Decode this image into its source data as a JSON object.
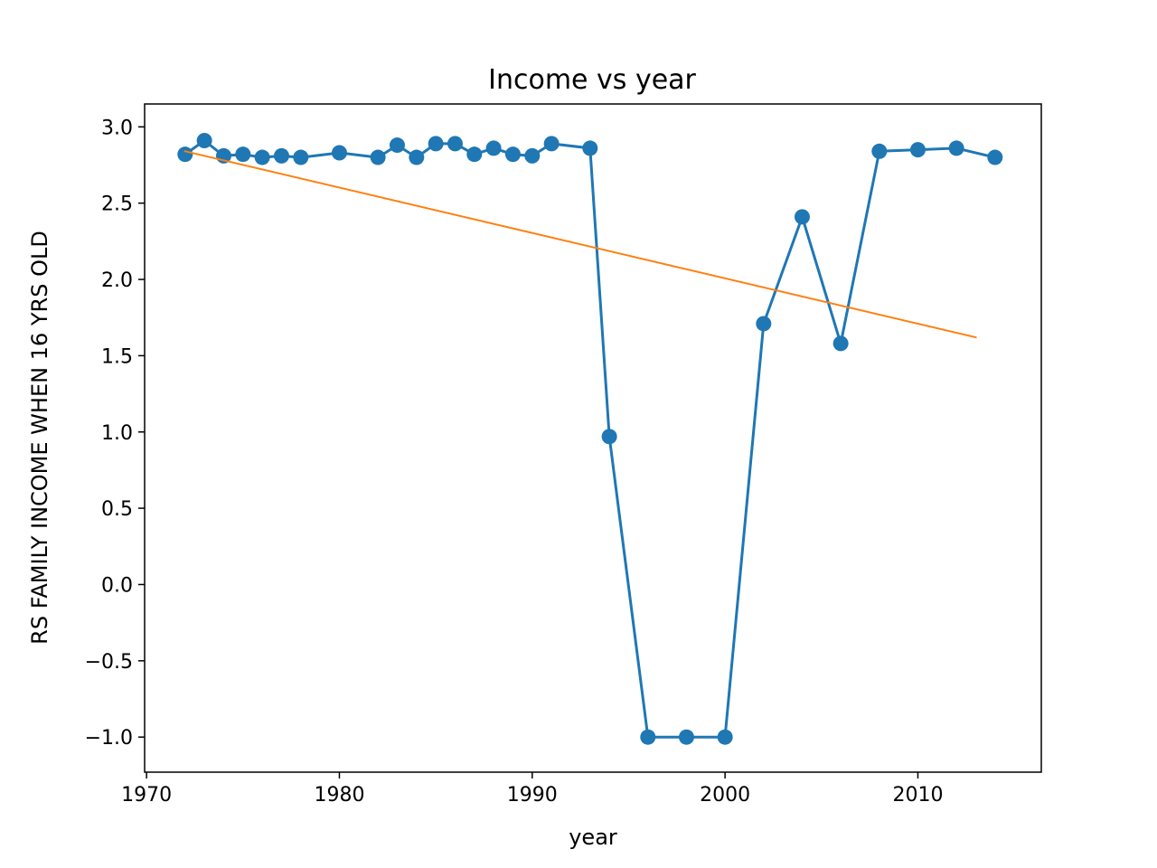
{
  "chart_data": {
    "type": "line",
    "title": "Income vs year",
    "xlabel": "year",
    "ylabel": "RS FAMILY INCOME WHEN 16 YRS OLD",
    "xlim": [
      1969.9,
      2016.4
    ],
    "ylim": [
      -1.23,
      3.15
    ],
    "xticks": [
      1970,
      1980,
      1990,
      2000,
      2010
    ],
    "xtick_labels": [
      "1970",
      "1980",
      "1990",
      "2000",
      "2010"
    ],
    "yticks": [
      -1.0,
      -0.5,
      0.0,
      0.5,
      1.0,
      1.5,
      2.0,
      2.5,
      3.0
    ],
    "ytick_labels": [
      "−1.0",
      "−0.5",
      "0.0",
      "0.5",
      "1.0",
      "1.5",
      "2.0",
      "2.5",
      "3.0"
    ],
    "grid": false,
    "series": [
      {
        "style": "line-marker",
        "color": "#1f77b4",
        "x": [
          1972,
          1973,
          1974,
          1975,
          1976,
          1977,
          1978,
          1980,
          1982,
          1983,
          1984,
          1985,
          1986,
          1987,
          1988,
          1989,
          1990,
          1991,
          1993,
          1994,
          1996,
          1998,
          2000,
          2002,
          2004,
          2006,
          2008,
          2010,
          2012,
          2014
        ],
        "y": [
          2.82,
          2.91,
          2.81,
          2.82,
          2.8,
          2.81,
          2.8,
          2.83,
          2.8,
          2.88,
          2.8,
          2.89,
          2.89,
          2.82,
          2.86,
          2.82,
          2.81,
          2.89,
          2.86,
          0.97,
          -1.0,
          -1.0,
          -1.0,
          1.71,
          2.41,
          1.58,
          2.84,
          2.85,
          2.86,
          2.8
        ]
      },
      {
        "style": "line",
        "color": "#ff7f0e",
        "x": [
          1972,
          2013
        ],
        "y": [
          2.84,
          1.62
        ]
      }
    ]
  }
}
